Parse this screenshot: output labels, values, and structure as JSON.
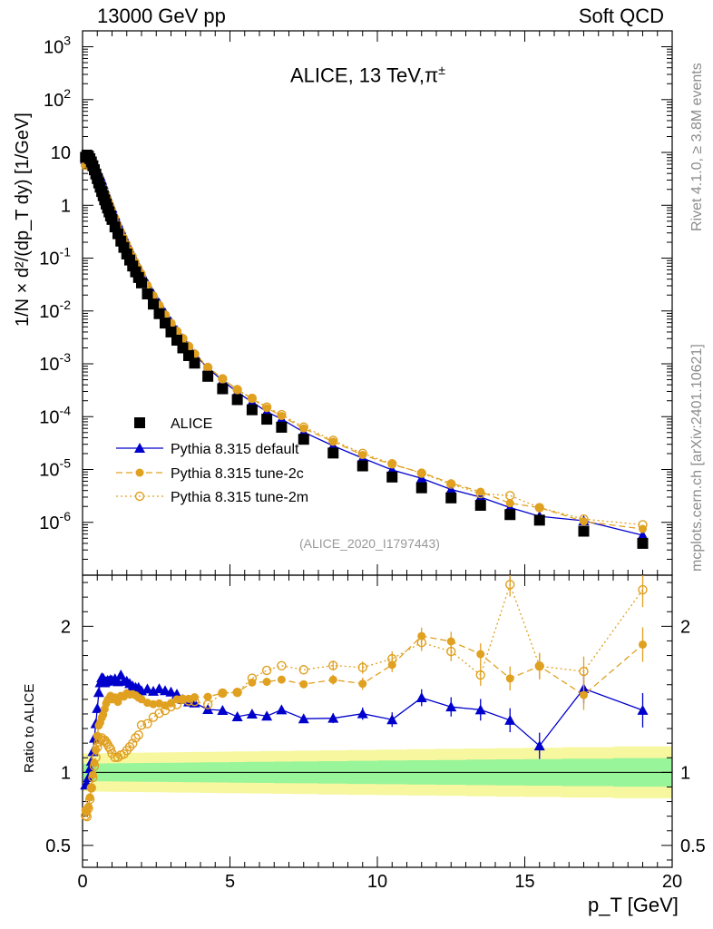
{
  "header": {
    "left": "13000 GeV pp",
    "right": "Soft QCD"
  },
  "side": {
    "rivet": "Rivet 4.1.0, ≥ 3.8M events",
    "mcplots": "mcplots.cern.ch [arXiv:2401.10621]"
  },
  "plot_title": "ALICE, 13 TeV,",
  "plot_title_sym": "π",
  "plot_title_sup": "±",
  "analysis_id": "(ALICE_2020_I1797443)",
  "ratio_label": "Ratio to ALICE",
  "colors": {
    "data": "#000000",
    "default": "#0000cc",
    "tune2c": "#e0a020",
    "tune2m": "#e0a020",
    "band_inner": "#99f599",
    "band_outer": "#f7f7a0"
  },
  "chart_data": {
    "type": "scatter",
    "xlabel": "p_T [GeV]",
    "ylabel": "1/N × d²/(dp_T dy) [1/GeV]",
    "xlim": [
      0,
      20
    ],
    "ylim_main": [
      1e-07,
      2000
    ],
    "ylim_ratio": [
      0.35,
      2.35
    ],
    "x_ticks": [
      0,
      5,
      10,
      15,
      20
    ],
    "y_ticks_main": [
      "10^-6",
      "10^-5",
      "10^-4",
      "10^-3",
      "10^-2",
      "10^-1",
      "1",
      "10",
      "10^2",
      "10^3"
    ],
    "y_ticks_ratio": [
      0.5,
      1,
      2
    ],
    "legend": [
      "ALICE",
      "Pythia 8.315 default",
      "Pythia 8.315 tune-2c",
      "Pythia 8.315 tune-2m"
    ],
    "legend_position": "lower-left",
    "x": [
      0.1,
      0.15,
      0.2,
      0.25,
      0.3,
      0.35,
      0.4,
      0.45,
      0.5,
      0.55,
      0.6,
      0.65,
      0.7,
      0.75,
      0.8,
      0.85,
      0.9,
      0.95,
      1.0,
      1.1,
      1.2,
      1.3,
      1.4,
      1.5,
      1.6,
      1.7,
      1.8,
      1.9,
      2.0,
      2.2,
      2.4,
      2.6,
      2.8,
      3.0,
      3.2,
      3.4,
      3.6,
      3.8,
      4.25,
      4.75,
      5.25,
      5.75,
      6.25,
      6.75,
      7.5,
      8.5,
      9.5,
      10.5,
      11.5,
      12.5,
      13.5,
      14.5,
      15.5,
      17.0,
      19.0
    ],
    "series": [
      {
        "name": "ALICE",
        "values": [
          8.1,
          8.9,
          8.5,
          7.6,
          6.6,
          5.6,
          4.7,
          3.9,
          3.2,
          2.65,
          2.2,
          1.82,
          1.52,
          1.27,
          1.06,
          0.89,
          0.75,
          0.63,
          0.54,
          0.39,
          0.29,
          0.21,
          0.16,
          0.12,
          0.092,
          0.071,
          0.055,
          0.043,
          0.034,
          0.021,
          0.0135,
          0.0089,
          0.0059,
          0.004,
          0.0028,
          0.002,
          0.00143,
          0.00103,
          0.00058,
          0.000337,
          0.00021,
          0.000135,
          8.95e-05,
          6.3e-05,
          3.73e-05,
          2.05e-05,
          1.17e-05,
          7.2e-06,
          4.5e-06,
          2.9e-06,
          2.1e-06,
          1.4e-06,
          1.1e-06,
          6.8e-07,
          4e-07
        ]
      },
      {
        "name": "Pythia 8.315 default",
        "values": [
          7.4,
          8.2,
          8.2,
          7.8,
          7.1,
          6.4,
          5.8,
          5.2,
          4.6,
          4.1,
          3.55,
          3.0,
          2.5,
          2.05,
          1.72,
          1.45,
          1.22,
          1.03,
          0.88,
          0.64,
          0.47,
          0.35,
          0.26,
          0.195,
          0.148,
          0.113,
          0.087,
          0.068,
          0.053,
          0.033,
          0.021,
          0.014,
          0.0092,
          0.0062,
          0.0043,
          0.003,
          0.00212,
          0.00152,
          0.00083,
          0.00048,
          0.00029,
          0.000189,
          0.000124,
          9e-05,
          5.1e-05,
          2.81e-05,
          1.64e-05,
          9.8e-06,
          6.8e-06,
          4.2e-06,
          3e-06,
          1.9e-06,
          1.3e-06,
          1.07e-06,
          5.7e-07
        ]
      },
      {
        "name": "Pythia 8.315 tune-2c",
        "values": [
          6.0,
          6.5,
          6.5,
          6.3,
          5.9,
          5.5,
          5.0,
          4.5,
          4.0,
          3.5,
          2.95,
          2.5,
          2.12,
          1.82,
          1.56,
          1.33,
          1.13,
          0.96,
          0.81,
          0.59,
          0.43,
          0.32,
          0.243,
          0.185,
          0.141,
          0.109,
          0.084,
          0.065,
          0.051,
          0.031,
          0.0198,
          0.0131,
          0.0086,
          0.0059,
          0.0042,
          0.003,
          0.00215,
          0.00156,
          0.00088,
          0.00052,
          0.000325,
          0.000218,
          0.000145,
          0.000103,
          5.98e-05,
          3.35e-05,
          1.88e-05,
          1.25e-05,
          8.7e-06,
          5.5e-06,
          3.8e-06,
          2.3e-06,
          1.9e-06,
          1.04e-06,
          7.5e-07
        ]
      },
      {
        "name": "Pythia 8.315 tune-2m",
        "values": [
          5.7,
          6.2,
          6.4,
          6.2,
          5.9,
          5.4,
          4.9,
          4.3,
          3.75,
          3.2,
          2.7,
          2.25,
          1.85,
          1.55,
          1.28,
          1.06,
          0.88,
          0.73,
          0.61,
          0.43,
          0.32,
          0.235,
          0.18,
          0.138,
          0.108,
          0.085,
          0.068,
          0.054,
          0.045,
          0.028,
          0.0186,
          0.0125,
          0.0084,
          0.0058,
          0.0041,
          0.003,
          0.00213,
          0.00153,
          0.00085,
          0.00052,
          0.000325,
          0.000222,
          0.000152,
          0.000109,
          6.35e-05,
          3.55e-05,
          2.01e-05,
          1.28e-05,
          8.5e-06,
          5.3e-06,
          3.5e-06,
          3.2e-06,
          1.9e-06,
          1.15e-06,
          9e-07
        ]
      }
    ]
  }
}
